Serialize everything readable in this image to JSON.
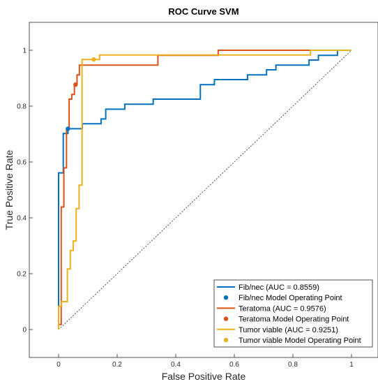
{
  "chart_data": {
    "type": "line",
    "title": "ROC Curve SVM",
    "xlabel": "False Positive Rate",
    "ylabel": "True Positive Rate",
    "xlim": [
      -0.1,
      1.1
    ],
    "ylim": [
      -0.1,
      1.1
    ],
    "xticks": [
      "0",
      "0.2",
      "0.4",
      "0.6",
      "0.8",
      "1"
    ],
    "yticks": [
      "0",
      "0.2",
      "0.4",
      "0.6",
      "0.8",
      "1"
    ],
    "grid": false,
    "legend_position": "bottom-right",
    "colors": {
      "fib": "#0072BD",
      "teratoma": "#D95319",
      "tumor": "#EDB120",
      "chance": "#262626"
    },
    "chance_line": {
      "x": [
        0,
        1
      ],
      "y": [
        0,
        1
      ]
    },
    "series": [
      {
        "name": "Fib/nec (AUC = 0.8559)",
        "color_key": "fib",
        "x": [
          0,
          0,
          0.016,
          0.016,
          0.032,
          0.032,
          0.048,
          0.048,
          0.065,
          0.065,
          0.081,
          0.081,
          0.145,
          0.145,
          0.161,
          0.161,
          0.226,
          0.226,
          0.323,
          0.323,
          0.484,
          0.484,
          0.532,
          0.532,
          0.645,
          0.645,
          0.71,
          0.71,
          0.726,
          0.726,
          0.742,
          0.742,
          0.855,
          0.855,
          0.871,
          0.871,
          0.887,
          0.887,
          0.952,
          0.952,
          1
        ],
        "y": [
          0,
          0.561,
          0.561,
          0.702,
          0.702,
          0.719,
          0.719,
          0.719,
          0.719,
          0.719,
          0.719,
          0.737,
          0.737,
          0.754,
          0.754,
          0.789,
          0.789,
          0.807,
          0.807,
          0.825,
          0.825,
          0.877,
          0.877,
          0.895,
          0.895,
          0.912,
          0.912,
          0.93,
          0.93,
          0.93,
          0.93,
          0.947,
          0.947,
          0.965,
          0.965,
          0.965,
          0.965,
          0.982,
          0.982,
          1,
          1
        ]
      },
      {
        "name": "Fib/nec Model Operating Point",
        "color_key": "fib",
        "point": [
          0.032,
          0.719
        ]
      },
      {
        "name": "Teratoma (AUC = 0.9576)",
        "color_key": "teratoma",
        "x": [
          0,
          0,
          0.009,
          0.009,
          0.018,
          0.018,
          0.027,
          0.027,
          0.036,
          0.036,
          0.045,
          0.045,
          0.054,
          0.054,
          0.063,
          0.063,
          0.071,
          0.071,
          0.339,
          0.339,
          0.545,
          0.545,
          0.893,
          0.893,
          1
        ],
        "y": [
          0,
          0.018,
          0.018,
          0.439,
          0.439,
          0.579,
          0.579,
          0.719,
          0.719,
          0.825,
          0.825,
          0.842,
          0.842,
          0.877,
          0.877,
          0.912,
          0.912,
          0.947,
          0.947,
          0.982,
          0.982,
          1,
          1,
          1,
          1
        ]
      },
      {
        "name": "Teratoma Model Operating Point",
        "color_key": "teratoma",
        "point": [
          0.058,
          0.877
        ]
      },
      {
        "name": "Tumor viable (AUC = 0.9251)",
        "color_key": "tumor",
        "x": [
          0,
          0,
          0.01,
          0.01,
          0.02,
          0.02,
          0.03,
          0.03,
          0.04,
          0.04,
          0.05,
          0.05,
          0.06,
          0.06,
          0.07,
          0.07,
          0.08,
          0.08,
          0.09,
          0.09,
          0.14,
          0.14,
          0.86,
          0.86,
          1
        ],
        "y": [
          0,
          0.083,
          0.083,
          0.1,
          0.1,
          0.1,
          0.1,
          0.217,
          0.217,
          0.283,
          0.283,
          0.317,
          0.317,
          0.433,
          0.433,
          0.517,
          0.517,
          0.967,
          0.967,
          0.967,
          0.967,
          0.983,
          0.983,
          1,
          1
        ]
      },
      {
        "name": "Tumor viable Model Operating Point",
        "color_key": "tumor",
        "point": [
          0.12,
          0.967
        ]
      }
    ]
  }
}
